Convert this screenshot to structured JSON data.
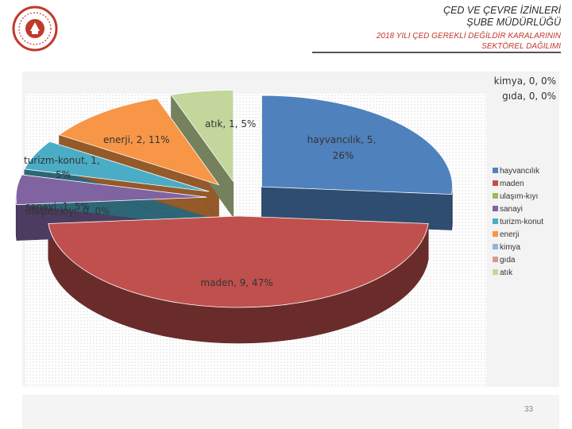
{
  "header": {
    "line1": "ÇED VE ÇEVRE İZİNLERİ",
    "line2": "ŞUBE MÜDÜRLÜĞÜ",
    "subtitle1": "2018 YILI ÇED GEREKLİ DEĞİLDİR KARALARININ",
    "subtitle2": "SEKTÖREL DAĞILIMI"
  },
  "page_number": "33",
  "colors": {
    "accent_red": "#c0392b",
    "panel": "#f3f3f3"
  },
  "chart_data": {
    "type": "pie",
    "style": "3d-exploded",
    "title": "2018 YILI ÇED GEREKLİ DEĞİLDİR KARALARININ SEKTÖREL DAĞILIMI",
    "legend_position": "right",
    "slices": [
      {
        "name": "hayvancılık",
        "value": 5,
        "percent": 26,
        "label": "hayvancılık, 5, 26%",
        "color": "#4f81bd"
      },
      {
        "name": "maden",
        "value": 9,
        "percent": 47,
        "label": "maden, 9, 47%",
        "color": "#c0504d"
      },
      {
        "name": "ulaşım-kıyı",
        "value": 0,
        "percent": 0,
        "label": "ulaşım-kıyı, 0, 0%",
        "color": "#9bbb59"
      },
      {
        "name": "sanayi",
        "value": 1,
        "percent": 5,
        "label": "sanayi, 1, 5%",
        "color": "#8064a2"
      },
      {
        "name": "turizm-konut",
        "value": 1,
        "percent": 5,
        "label": "turizm-konut, 1, 5%",
        "color": "#4bacc6"
      },
      {
        "name": "enerji",
        "value": 2,
        "percent": 11,
        "label": "enerji, 2, 11%",
        "color": "#f79646"
      },
      {
        "name": "kimya",
        "value": 0,
        "percent": 0,
        "label": "kimya, 0, 0%",
        "color": "#95b3d7"
      },
      {
        "name": "gıda",
        "value": 0,
        "percent": 0,
        "label": "gıda, 0, 0%",
        "color": "#d99694"
      },
      {
        "name": "atık",
        "value": 1,
        "percent": 5,
        "label": "atık, 1, 5%",
        "color": "#c3d69b"
      }
    ]
  }
}
